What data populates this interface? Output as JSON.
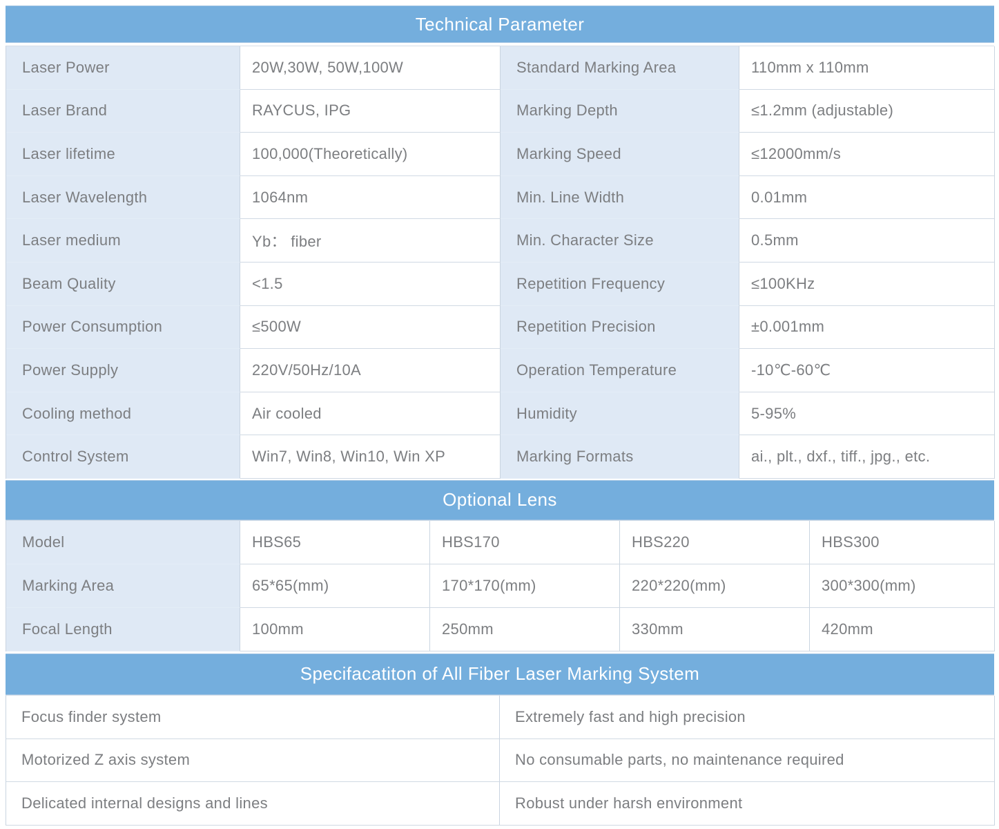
{
  "colors": {
    "header_bg": "#74aedd",
    "label_cell_bg": "#dfe9f5",
    "body_text": "#7c7e81",
    "header_text": "#ffffff"
  },
  "technical": {
    "title": "Technical Parameter",
    "rows": [
      {
        "label1": "Laser Power",
        "value1": "20W,30W, 50W,100W",
        "label2": "Standard Marking Area",
        "value2": "110mm x 110mm"
      },
      {
        "label1": "Laser Brand",
        "value1": "RAYCUS, IPG",
        "label2": "Marking Depth",
        "value2": "≤1.2mm (adjustable)"
      },
      {
        "label1": "Laser lifetime",
        "value1": "100,000(Theoretically)",
        "label2": "Marking Speed",
        "value2": "≤12000mm/s"
      },
      {
        "label1": "Laser Wavelength",
        "value1": "1064nm",
        "label2": "Min. Line Width",
        "value2": "0.01mm"
      },
      {
        "label1": "Laser medium",
        "value1": "Yb： fiber",
        "label2": "Min. Character Size",
        "value2": "0.5mm"
      },
      {
        "label1": "Beam Quality",
        "value1": "<1.5",
        "label2": "Repetition Frequency",
        "value2": "≤100KHz"
      },
      {
        "label1": "Power Consumption",
        "value1": "≤500W",
        "label2": "Repetition Precision",
        "value2": "±0.001mm"
      },
      {
        "label1": "Power Supply",
        "value1": "220V/50Hz/10A",
        "label2": "Operation Temperature",
        "value2": "-10℃-60℃"
      },
      {
        "label1": "Cooling method",
        "value1": "Air cooled",
        "label2": "Humidity",
        "value2": "5-95%"
      },
      {
        "label1": "Control System",
        "value1": "Win7, Win8, Win10, Win XP",
        "label2": "Marking Formats",
        "value2": "ai., plt., dxf., tiff., jpg., etc."
      }
    ]
  },
  "optional_lens": {
    "title": "Optional Lens",
    "rows": [
      {
        "label": "Model",
        "values": [
          "HBS65",
          "HBS170",
          "HBS220",
          "HBS300"
        ]
      },
      {
        "label": "Marking Area",
        "values": [
          "65*65(mm)",
          "170*170(mm)",
          "220*220(mm)",
          "300*300(mm)"
        ]
      },
      {
        "label": "Focal Length",
        "values": [
          "100mm",
          "250mm",
          "330mm",
          "420mm"
        ]
      }
    ]
  },
  "specification": {
    "title": "Specifacatiton of All Fiber Laser Marking System",
    "rows": [
      {
        "left": "Focus finder system",
        "right": "Extremely fast and high precision"
      },
      {
        "left": "Motorized Z axis system",
        "right": "No consumable parts, no maintenance required"
      },
      {
        "left": "Delicated internal designs and lines",
        "right": "Robust under harsh environment"
      }
    ]
  }
}
